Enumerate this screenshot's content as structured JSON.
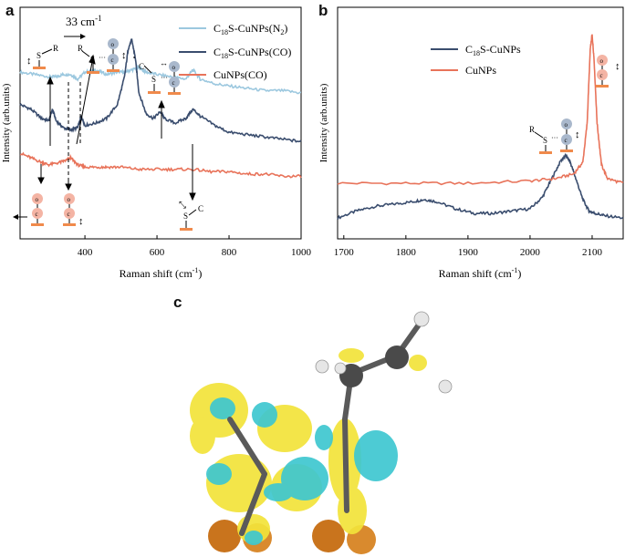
{
  "panels": {
    "a": "a",
    "b": "b",
    "c": "c"
  },
  "chart_data": [
    {
      "type": "line",
      "panel": "a",
      "xlabel": "Raman shift (cm",
      "xlabel_sup": "-1",
      "xlabel_end": ")",
      "ylabel": "Intensity (arb.units)",
      "xlim": [
        220,
        1000
      ],
      "ylim": [
        0,
        1
      ],
      "x_ticks": [
        400,
        600,
        800,
        1000
      ],
      "x_tick_labels": [
        "400",
        "600",
        "800",
        "1000"
      ],
      "annotation_shift": "33 cm",
      "annotation_shift_sup": "-1",
      "series": [
        {
          "name": "C18S-CuNPs(N2)",
          "label_pre": "C",
          "label_sub1": "18",
          "label_mid": "S-CuNPs(N",
          "label_sub2": "2",
          "label_post": ")",
          "color": "#9cc8df",
          "x": [
            220,
            260,
            300,
            320,
            340,
            360,
            380,
            400,
            430,
            460,
            490,
            510,
            530,
            550,
            570,
            600,
            640,
            680,
            700,
            720,
            760,
            800,
            850,
            900,
            950,
            1000
          ],
          "y": [
            0.72,
            0.71,
            0.7,
            0.7,
            0.71,
            0.71,
            0.69,
            0.72,
            0.73,
            0.71,
            0.72,
            0.72,
            0.73,
            0.74,
            0.72,
            0.71,
            0.7,
            0.69,
            0.73,
            0.69,
            0.67,
            0.66,
            0.65,
            0.64,
            0.64,
            0.63
          ]
        },
        {
          "name": "C18S-CuNPs(CO)",
          "label_pre": "C",
          "label_sub1": "18",
          "label_mid": "S-CuNPs(CO)",
          "label_sub2": "",
          "label_post": "",
          "color": "#3a4d6e",
          "x": [
            220,
            250,
            280,
            300,
            310,
            320,
            340,
            360,
            380,
            390,
            400,
            430,
            460,
            490,
            510,
            520,
            530,
            540,
            550,
            570,
            590,
            610,
            620,
            650,
            680,
            700,
            720,
            760,
            800,
            850,
            900,
            950,
            1000
          ],
          "y": [
            0.58,
            0.56,
            0.52,
            0.51,
            0.56,
            0.51,
            0.48,
            0.47,
            0.48,
            0.53,
            0.49,
            0.5,
            0.52,
            0.58,
            0.7,
            0.82,
            0.86,
            0.78,
            0.63,
            0.54,
            0.52,
            0.55,
            0.52,
            0.5,
            0.52,
            0.56,
            0.53,
            0.49,
            0.46,
            0.45,
            0.44,
            0.43,
            0.42
          ]
        },
        {
          "name": "CuNPs(CO)",
          "label_pre": "CuNPs(CO)",
          "label_sub1": "",
          "label_mid": "",
          "label_sub2": "",
          "label_post": "",
          "color": "#e8735a",
          "x": [
            220,
            250,
            280,
            300,
            330,
            350,
            360,
            380,
            400,
            430,
            460,
            500,
            550,
            600,
            650,
            700,
            750,
            800,
            850,
            900,
            950,
            1000
          ],
          "y": [
            0.37,
            0.35,
            0.33,
            0.32,
            0.33,
            0.34,
            0.35,
            0.32,
            0.31,
            0.31,
            0.31,
            0.31,
            0.3,
            0.3,
            0.3,
            0.3,
            0.29,
            0.29,
            0.28,
            0.28,
            0.27,
            0.27
          ]
        }
      ]
    },
    {
      "type": "line",
      "panel": "b",
      "xlabel": "Raman shift (cm",
      "xlabel_sup": "-1",
      "xlabel_end": ")",
      "ylabel": "Intensity (arb.units)",
      "xlim": [
        1690,
        2150
      ],
      "ylim": [
        0,
        1
      ],
      "x_ticks": [
        1700,
        1800,
        1900,
        2000,
        2100
      ],
      "x_tick_labels": [
        "1700",
        "1800",
        "1900",
        "2000",
        "2100"
      ],
      "series": [
        {
          "name": "C18S-CuNPs",
          "label_pre": "C",
          "label_sub1": "18",
          "label_mid": "S-CuNPs",
          "label_sub2": "",
          "label_post": "",
          "color": "#3a4d6e",
          "x": [
            1690,
            1720,
            1750,
            1780,
            1810,
            1830,
            1850,
            1880,
            1910,
            1940,
            1970,
            2000,
            2020,
            2035,
            2050,
            2058,
            2065,
            2075,
            2085,
            2095,
            2105,
            2120,
            2150
          ],
          "y": [
            0.09,
            0.12,
            0.14,
            0.15,
            0.16,
            0.17,
            0.16,
            0.13,
            0.11,
            0.11,
            0.12,
            0.13,
            0.18,
            0.26,
            0.34,
            0.36,
            0.33,
            0.25,
            0.17,
            0.12,
            0.11,
            0.1,
            0.09
          ]
        },
        {
          "name": "CuNPs",
          "label_pre": "CuNPs",
          "label_sub1": "",
          "label_mid": "",
          "label_sub2": "",
          "label_post": "",
          "color": "#e8735a",
          "x": [
            1690,
            1800,
            1900,
            2000,
            2040,
            2070,
            2085,
            2092,
            2097,
            2100,
            2103,
            2108,
            2115,
            2125,
            2150
          ],
          "y": [
            0.24,
            0.24,
            0.24,
            0.25,
            0.26,
            0.28,
            0.33,
            0.5,
            0.82,
            0.88,
            0.78,
            0.5,
            0.32,
            0.26,
            0.24
          ]
        }
      ]
    }
  ],
  "diagram_labels": {
    "S": "S",
    "C": "C",
    "R": "R",
    "O": "O",
    "c_small": "c",
    "o_small": "o"
  },
  "colors": {
    "yellow": "#f2e33a",
    "cyan": "#3ec7d0",
    "copper": "#c9741d",
    "carbon": "#4a4a4a",
    "hydrogen": "#e6e6e6"
  }
}
